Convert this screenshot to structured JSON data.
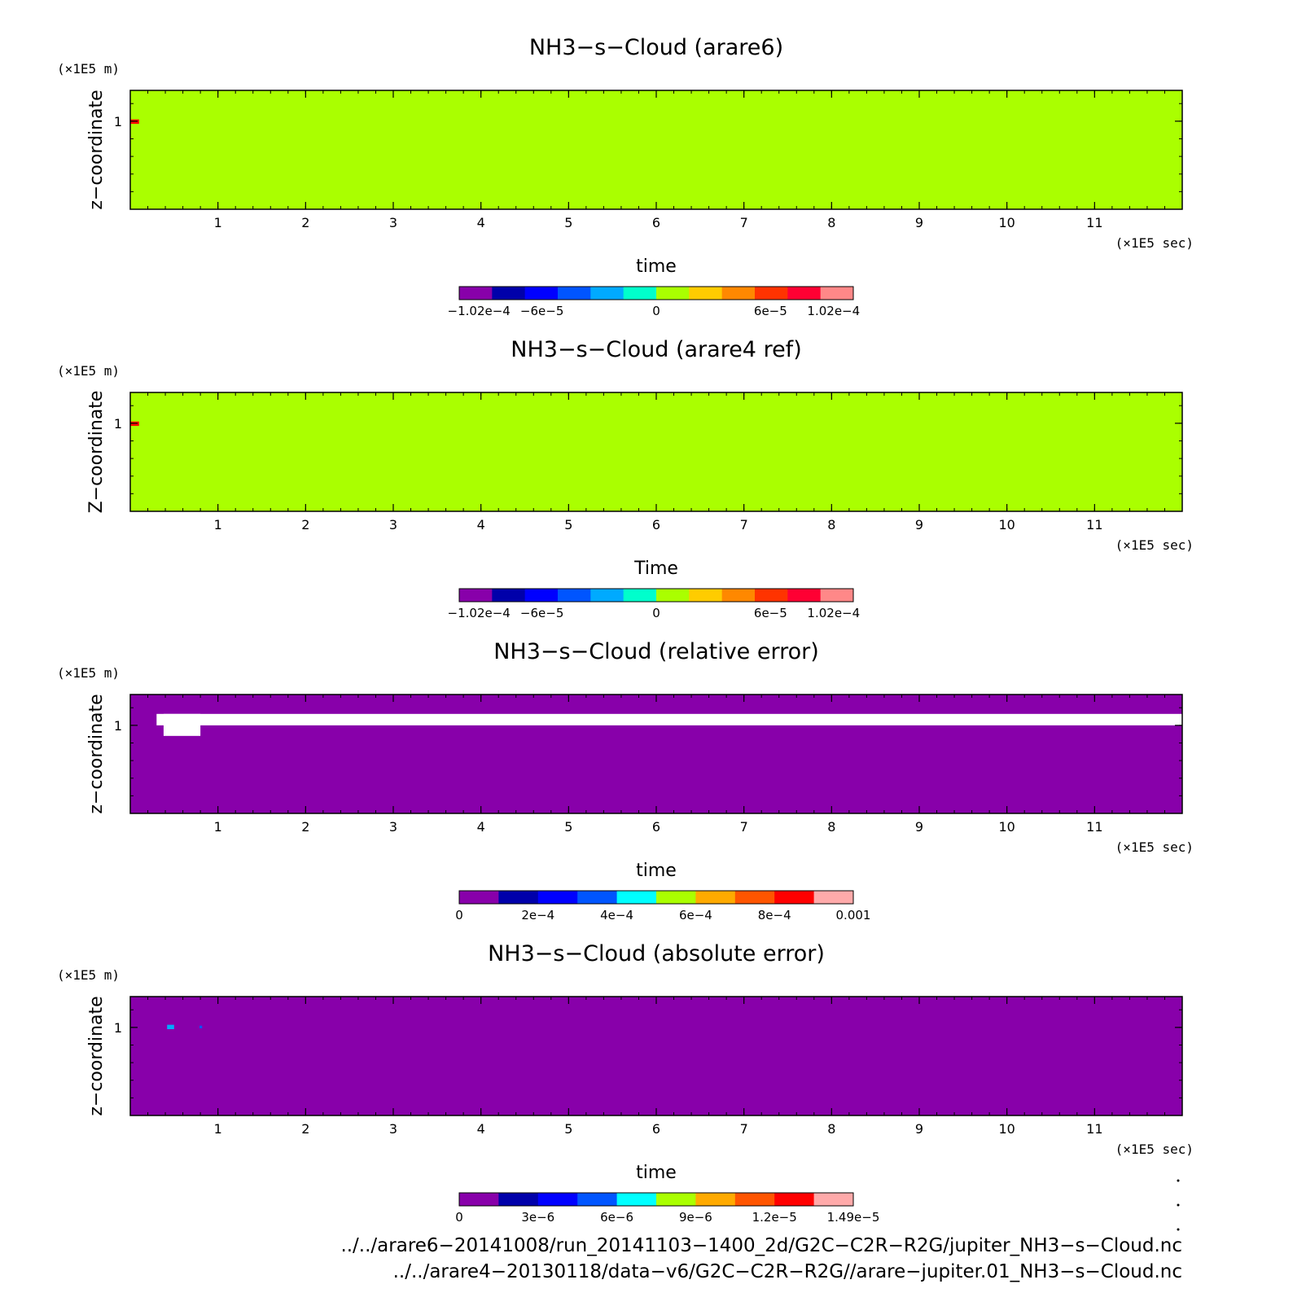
{
  "chart_data": [
    {
      "type": "heatmap",
      "title": "NH3−s−Cloud (arare6)",
      "xlabel": "time",
      "ylabel": "z−coordinate",
      "x_unit": "(×1E5 sec)",
      "y_unit": "(×1E5 m)",
      "xlim": [
        0,
        12
      ],
      "ylim": [
        0,
        1.35
      ],
      "x_ticks": [
        "1",
        "2",
        "3",
        "4",
        "5",
        "6",
        "7",
        "8",
        "9",
        "10",
        "11"
      ],
      "y_ticks": [
        "1"
      ],
      "field_color": "#aaff00",
      "features": [
        {
          "kind": "spot",
          "x": [
            0.0,
            0.1
          ],
          "y": [
            0.97,
            1.02
          ],
          "color": "#ff0000"
        }
      ],
      "colorbar": {
        "colors": [
          "#8800aa",
          "#0000aa",
          "#0000ff",
          "#0055ff",
          "#00aaff",
          "#00ffcc",
          "#aaff00",
          "#ffcc00",
          "#ff8800",
          "#ff3300",
          "#ff0033",
          "#ff8888"
        ],
        "ticks": [
          "−1.02e−4",
          "−6e−5",
          "0",
          "6e−5",
          "1.02e−4"
        ]
      }
    },
    {
      "type": "heatmap",
      "title": "NH3−s−Cloud (arare4 ref)",
      "xlabel": "Time",
      "ylabel": "Z−coordinate",
      "x_unit": "(×1E5 sec)",
      "y_unit": "(×1E5 m)",
      "xlim": [
        0,
        12
      ],
      "ylim": [
        0,
        1.35
      ],
      "x_ticks": [
        "1",
        "2",
        "3",
        "4",
        "5",
        "6",
        "7",
        "8",
        "9",
        "10",
        "11"
      ],
      "y_ticks": [
        "1"
      ],
      "field_color": "#aaff00",
      "features": [
        {
          "kind": "spot",
          "x": [
            0.0,
            0.1
          ],
          "y": [
            0.97,
            1.02
          ],
          "color": "#ff0000"
        }
      ],
      "colorbar": {
        "colors": [
          "#8800aa",
          "#0000aa",
          "#0000ff",
          "#0055ff",
          "#00aaff",
          "#00ffcc",
          "#aaff00",
          "#ffcc00",
          "#ff8800",
          "#ff3300",
          "#ff0033",
          "#ff8888"
        ],
        "ticks": [
          "−1.02e−4",
          "−6e−5",
          "0",
          "6e−5",
          "1.02e−4"
        ]
      }
    },
    {
      "type": "heatmap",
      "title": "NH3−s−Cloud (relative error)",
      "xlabel": "time",
      "ylabel": "z−coordinate",
      "x_unit": "(×1E5 sec)",
      "y_unit": "(×1E5 m)",
      "xlim": [
        0,
        12
      ],
      "ylim": [
        0,
        1.35
      ],
      "x_ticks": [
        "1",
        "2",
        "3",
        "4",
        "5",
        "6",
        "7",
        "8",
        "9",
        "10",
        "11"
      ],
      "y_ticks": [
        "1"
      ],
      "field_color": "#8800aa",
      "features": [
        {
          "kind": "band",
          "x": [
            0.3,
            12.0
          ],
          "y": [
            1.0,
            1.13
          ],
          "color": "#ffffff"
        },
        {
          "kind": "band",
          "x": [
            0.38,
            0.8
          ],
          "y": [
            0.88,
            1.13
          ],
          "color": "#ffffff"
        }
      ],
      "colorbar": {
        "colors": [
          "#8800aa",
          "#0000aa",
          "#0000ff",
          "#0055ff",
          "#00ffff",
          "#aaff00",
          "#ffaa00",
          "#ff5500",
          "#ff0000",
          "#ffaaaa"
        ],
        "ticks": [
          "0",
          "2e−4",
          "4e−4",
          "6e−4",
          "8e−4",
          "0.001"
        ]
      }
    },
    {
      "type": "heatmap",
      "title": "NH3−s−Cloud (absolute error)",
      "xlabel": "time",
      "ylabel": "z−coordinate",
      "x_unit": "(×1E5 sec)",
      "y_unit": "(×1E5 m)",
      "xlim": [
        0,
        12
      ],
      "ylim": [
        0,
        1.35
      ],
      "x_ticks": [
        "1",
        "2",
        "3",
        "4",
        "5",
        "6",
        "7",
        "8",
        "9",
        "10",
        "11"
      ],
      "y_ticks": [
        "1"
      ],
      "field_color": "#8800aa",
      "features": [
        {
          "kind": "spot",
          "x": [
            0.42,
            0.5
          ],
          "y": [
            0.98,
            1.03
          ],
          "color": "#00aaff"
        },
        {
          "kind": "spot",
          "x": [
            0.79,
            0.82
          ],
          "y": [
            0.99,
            1.02
          ],
          "color": "#0055ff"
        }
      ],
      "colorbar": {
        "colors": [
          "#8800aa",
          "#0000aa",
          "#0000ff",
          "#0055ff",
          "#00ffff",
          "#aaff00",
          "#ffaa00",
          "#ff5500",
          "#ff0000",
          "#ffaaaa"
        ],
        "ticks": [
          "0",
          "3e−6",
          "6e−6",
          "9e−6",
          "1.2e−5",
          "1.49e−5"
        ]
      }
    }
  ],
  "footer": {
    "line1": "../../arare6−20141008/run_20141103−1400_2d/G2C−C2R−R2G/jupiter_NH3−s−Cloud.nc",
    "line2": "../../arare4−20130118/data−v6/G2C−C2R−R2G//arare−jupiter.01_NH3−s−Cloud.nc"
  }
}
